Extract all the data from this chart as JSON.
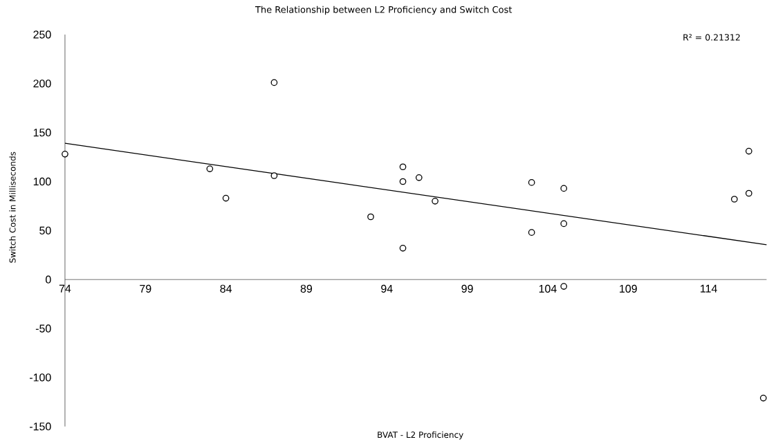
{
  "chart_data": {
    "type": "scatter",
    "title": "The Relationship between L2 Proficiency and Switch Cost",
    "xlabel": "BVAT - L2 Proficiency",
    "ylabel": "Switch Cost in Milliseconds",
    "annotations": [
      "R² = 0.21312"
    ],
    "xlim": [
      74,
      117.6
    ],
    "ylim": [
      -150,
      250
    ],
    "xticks": [
      74,
      79,
      84,
      89,
      94,
      99,
      104,
      109,
      114
    ],
    "yticks": [
      -150,
      -100,
      -50,
      0,
      50,
      100,
      150,
      200,
      250
    ],
    "series": [
      {
        "marker": "circle",
        "color": "#000000",
        "x": [
          74,
          83,
          84,
          87,
          87,
          93,
          95,
          95,
          95,
          96,
          97,
          103,
          103,
          105,
          105,
          105,
          115.6,
          116.5,
          116.5,
          117.4
        ],
        "values": [
          128,
          113,
          83,
          201,
          106,
          64,
          115,
          100,
          32,
          104,
          80,
          99,
          48,
          93,
          57,
          -7,
          82,
          131,
          88,
          -121
        ]
      },
      {
        "type": "line",
        "marker": "none",
        "color": "#000000",
        "x": [
          74,
          117.6
        ],
        "values": [
          139,
          35.5
        ]
      }
    ]
  }
}
